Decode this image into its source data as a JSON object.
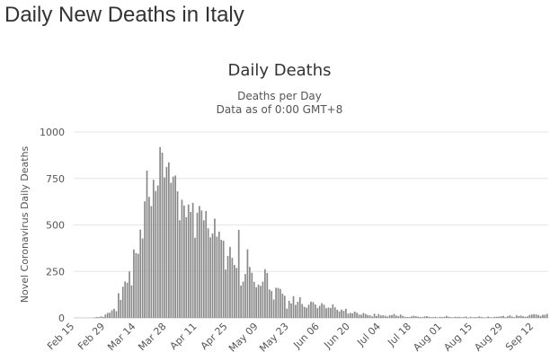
{
  "page": {
    "heading": "Daily New Deaths in Italy"
  },
  "chart_data": {
    "type": "bar",
    "title": "Daily Deaths",
    "subtitle_lines": [
      "Deaths per Day",
      "Data as of 0:00 GMT+8"
    ],
    "ylabel": "Novel Coronavirus Daily Deaths",
    "xlabel": "",
    "ylim": [
      0,
      1000
    ],
    "y_ticks": [
      0,
      250,
      500,
      750,
      1000
    ],
    "x_start": "Feb 15",
    "x_tick_labels": [
      "Feb 15",
      "Feb 29",
      "Mar 14",
      "Mar 28",
      "Apr 11",
      "Apr 25",
      "May 09",
      "May 23",
      "Jun 06",
      "Jun 20",
      "Jul 04",
      "Jul 18",
      "Aug 01",
      "Aug 15",
      "Aug 29",
      "Sep 12"
    ],
    "grid": true,
    "legend": "none",
    "colors": {
      "bar": "#8a8a8a",
      "grid": "#e6e6e6",
      "axis_text": "#555555",
      "title": "#333333"
    },
    "values": [
      0,
      0,
      0,
      0,
      0,
      0,
      0,
      0,
      0,
      2,
      5,
      4,
      8,
      5,
      18,
      27,
      28,
      41,
      49,
      36,
      133,
      97,
      168,
      196,
      189,
      250,
      175,
      368,
      349,
      345,
      475,
      427,
      627,
      793,
      651,
      601,
      743,
      683,
      712,
      919,
      889,
      756,
      812,
      837,
      727,
      760,
      766,
      681,
      525,
      636,
      604,
      542,
      610,
      570,
      619,
      431,
      566,
      602,
      578,
      525,
      575,
      482,
      433,
      454,
      534,
      437,
      464,
      420,
      415,
      260,
      333,
      382,
      323,
      285,
      269,
      474,
      174,
      195,
      236,
      369,
      274,
      243,
      194,
      165,
      179,
      172,
      195,
      262,
      242,
      153,
      145,
      99,
      162,
      161,
      156,
      130,
      119,
      50,
      92,
      78,
      117,
      70,
      87,
      111,
      75,
      60,
      55,
      71,
      88,
      85,
      72,
      53,
      65,
      79,
      71,
      52,
      56,
      53,
      73,
      57,
      44,
      35,
      45,
      38,
      49,
      23,
      27,
      25,
      34,
      28,
      18,
      17,
      27,
      21,
      16,
      14,
      8,
      23,
      11,
      21,
      13,
      14,
      12,
      7,
      14,
      15,
      21,
      13,
      9,
      18,
      11,
      6,
      5,
      5,
      8,
      12,
      9,
      7,
      5,
      4,
      8,
      10,
      6,
      4,
      5,
      6,
      2,
      6,
      4,
      6,
      11,
      6,
      4,
      3,
      6,
      5,
      6,
      3,
      5,
      7,
      1,
      6,
      3,
      5,
      4,
      8,
      5,
      2,
      3,
      7,
      4,
      2,
      6,
      6,
      7,
      9,
      11,
      4,
      9,
      14,
      7,
      4,
      14,
      10,
      13,
      9,
      6,
      8,
      16,
      18,
      20,
      18,
      16,
      10,
      17,
      17,
      22
    ]
  }
}
